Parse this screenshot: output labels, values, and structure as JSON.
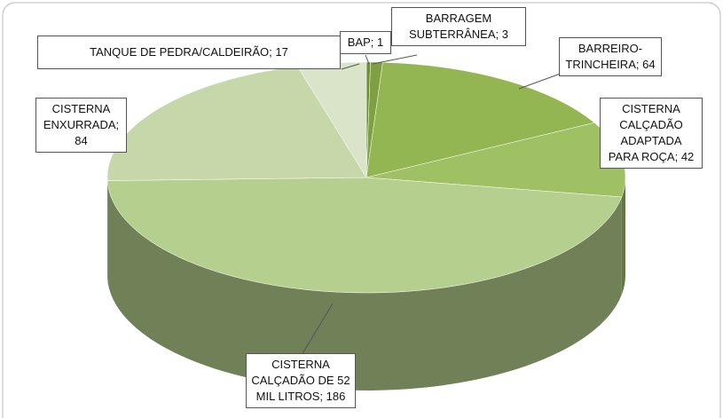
{
  "chart_data": {
    "type": "pie3d",
    "values": [
      1,
      3,
      64,
      42,
      186,
      84,
      17
    ],
    "value_labels": [
      "BAP; 1",
      "BARRAGEM SUBTERRÂNEA; 3",
      "BARREIRO-TRINCHEIRA; 64",
      "CISTERNA CALÇADÃO ADAPTADA PARA ROÇA; 42",
      "CISTERNA CALÇADÃO DE 52 MIL LITROS; 186",
      "CISTERNA ENXURRADA; 84",
      "TANQUE DE PEDRA/CALDEIRÃO; 17"
    ],
    "colors": [
      "#6e8f35",
      "#7fa041",
      "#93b653",
      "#a0c163",
      "#b5d08e",
      "#c6d8a9",
      "#d9e4c8"
    ]
  }
}
